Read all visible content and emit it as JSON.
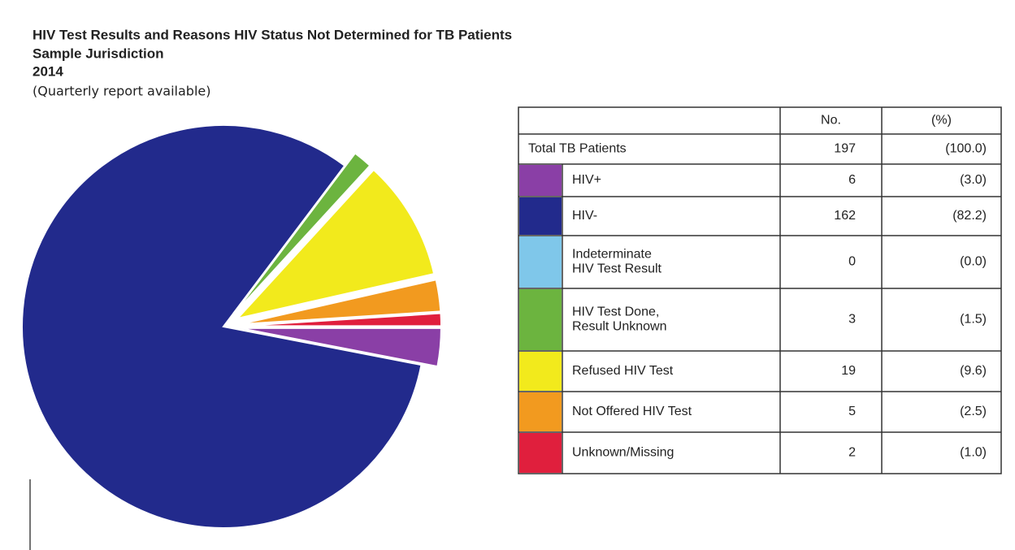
{
  "chart_data": {
    "type": "pie",
    "title": "HIV Test Results and Reasons HIV Status Not Determined for TB Patients",
    "subtitle": "Sample Jurisdiction",
    "year": "2014",
    "note": "(Quarterly report available)",
    "categories": [
      "HIV+",
      "HIV-",
      "Indeterminate HIV Test Result",
      "HIV Test Done, Result Unknown",
      "Refused HIV Test",
      "Not Offered HIV Test",
      "Unknown/Missing"
    ],
    "colors": [
      "#8a3fa6",
      "#222a8c",
      "#7fc7ea",
      "#6cb43f",
      "#f2ea1c",
      "#f29a1f",
      "#e01f3d"
    ],
    "values": [
      6,
      162,
      0,
      3,
      19,
      5,
      2
    ],
    "percents": [
      3.0,
      82.2,
      0.0,
      1.5,
      9.6,
      2.5,
      1.0
    ],
    "percent_labels": [
      "(3.0)",
      "(82.2)",
      "(0.0)",
      "(1.5)",
      "(9.6)",
      "(2.5)",
      "(1.0)"
    ],
    "exploded": [
      "HIV+",
      "Indeterminate HIV Test Result",
      "HIV Test Done, Result Unknown",
      "Refused HIV Test",
      "Not Offered HIV Test",
      "Unknown/Missing"
    ],
    "table_headers": [
      "No.",
      "(%)"
    ],
    "total_label": "Total TB Patients",
    "total": 197,
    "total_percent": 100.0,
    "total_percent_label": "(100.0)"
  }
}
